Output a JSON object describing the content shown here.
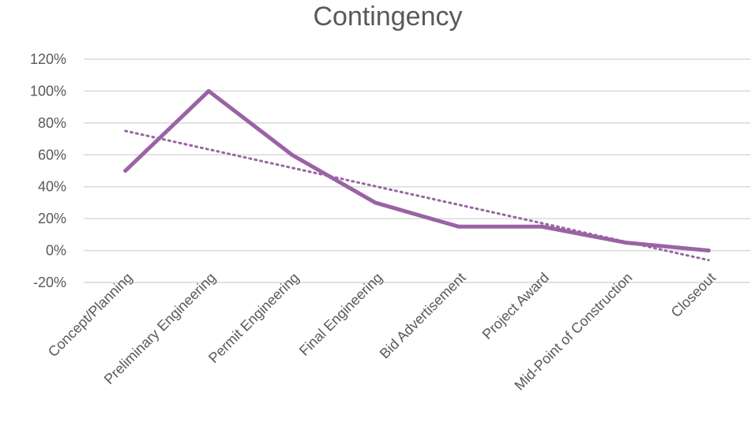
{
  "chart_data": {
    "type": "line",
    "title": "Contingency",
    "categories": [
      "Concept/Planning",
      "Preliminary Engineering",
      "Permit Engineering",
      "Final Engineering",
      "Bid Advertisement",
      "Project Award",
      "Mid-Point of Construction",
      "Closeout"
    ],
    "series": [
      {
        "values": [
          50,
          100,
          60,
          30,
          15,
          15,
          5,
          0
        ]
      }
    ],
    "trendline": {
      "type": "linear",
      "style": "dotted",
      "start": 75,
      "end": -6
    },
    "y_ticks": [
      "-20%",
      "0%",
      "20%",
      "40%",
      "60%",
      "80%",
      "100%",
      "120%"
    ],
    "ylim": [
      -20,
      120
    ],
    "grid": true,
    "legend": "none",
    "colors": {
      "series": "#9A63A4",
      "gridline": "#D9D9D9",
      "text": "#595959"
    }
  }
}
